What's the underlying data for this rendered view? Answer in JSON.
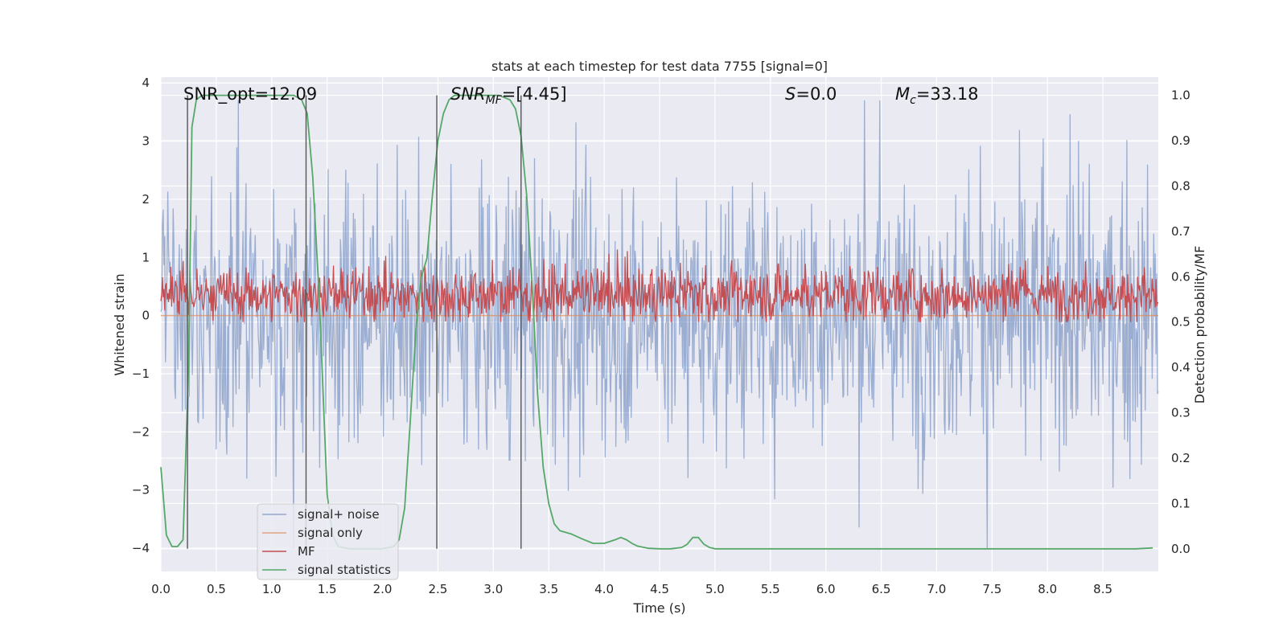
{
  "chart_data": {
    "type": "line",
    "title": "stats at each timestep for test data 7755 [signal=0]",
    "xlabel": "Time (s)",
    "ylabel": "Whitened strain",
    "y2label": "Detection probability/MF",
    "xlim": [
      0.0,
      9.0
    ],
    "ylim": [
      -4.4,
      4.1
    ],
    "y2lim": [
      -0.05,
      1.04
    ],
    "xticks": [
      "0.0",
      "0.5",
      "1.0",
      "1.5",
      "2.0",
      "2.5",
      "3.0",
      "3.5",
      "4.0",
      "4.5",
      "5.0",
      "5.5",
      "6.0",
      "6.5",
      "7.0",
      "7.5",
      "8.0",
      "8.5"
    ],
    "yticks": [
      "4",
      "3",
      "2",
      "1",
      "0",
      "−1",
      "−2",
      "−3",
      "−4"
    ],
    "y2ticks": [
      "1.0",
      "0.9",
      "0.8",
      "0.7",
      "0.6",
      "0.5",
      "0.4",
      "0.3",
      "0.2",
      "0.1",
      "0.0"
    ],
    "grid": true,
    "legend_position": "lower-left",
    "annotations": {
      "snr_opt": "SNR_opt=12.09",
      "snr_mf_main": "SNR",
      "snr_mf_sub": "MF",
      "snr_mf_value": "=[4.45]",
      "s_main": "S",
      "s_value": "=0.0",
      "mc_main": "M",
      "mc_sub": "c",
      "mc_value": "=33.18"
    },
    "vertical_lines_x": [
      0.24,
      1.31,
      2.49,
      3.25
    ],
    "series": [
      {
        "name": "signal+ noise",
        "color": "#4c72b0",
        "axis": "left",
        "style": "dense noise band",
        "typical_range": [
          -2.6,
          2.7
        ],
        "extreme_range": [
          -4.0,
          3.7
        ]
      },
      {
        "name": "signal only",
        "color": "#dd8452",
        "axis": "left",
        "x": [
          0.0,
          9.0
        ],
        "y": [
          0.0,
          0.0
        ]
      },
      {
        "name": "MF",
        "color": "#c44e52",
        "axis": "right",
        "style": "dense noise band",
        "typical_range": [
          0.52,
          0.6
        ],
        "extreme_range": [
          0.5,
          0.66
        ]
      },
      {
        "name": "signal statistics",
        "color": "#55a868",
        "axis": "right",
        "x": [
          0.0,
          0.05,
          0.1,
          0.15,
          0.2,
          0.25,
          0.28,
          0.32,
          0.37,
          0.4,
          0.6,
          0.8,
          1.0,
          1.2,
          1.27,
          1.32,
          1.37,
          1.43,
          1.5,
          1.55,
          1.6,
          1.7,
          1.8,
          1.9,
          2.0,
          2.1,
          2.15,
          2.2,
          2.25,
          2.3,
          2.35,
          2.4,
          2.45,
          2.5,
          2.55,
          2.6,
          2.65,
          2.75,
          2.85,
          2.95,
          3.05,
          3.15,
          3.2,
          3.25,
          3.3,
          3.35,
          3.4,
          3.45,
          3.5,
          3.55,
          3.6,
          3.7,
          3.8,
          3.9,
          4.0,
          4.1,
          4.15,
          4.2,
          4.25,
          4.3,
          4.4,
          4.5,
          4.6,
          4.7,
          4.75,
          4.8,
          4.85,
          4.9,
          4.95,
          5.0,
          5.1,
          5.5,
          6.0,
          7.0,
          8.0,
          8.5,
          8.8,
          8.95
        ],
        "y": [
          0.18,
          0.03,
          0.005,
          0.005,
          0.02,
          0.4,
          0.93,
          0.99,
          1.0,
          1.0,
          1.0,
          1.0,
          1.0,
          1.0,
          0.99,
          0.96,
          0.82,
          0.55,
          0.12,
          0.03,
          0.005,
          0.0,
          0.0,
          0.0,
          0.0,
          0.005,
          0.02,
          0.09,
          0.28,
          0.48,
          0.6,
          0.64,
          0.78,
          0.9,
          0.96,
          0.99,
          1.0,
          1.0,
          1.0,
          1.0,
          1.0,
          0.99,
          0.97,
          0.91,
          0.78,
          0.58,
          0.34,
          0.18,
          0.1,
          0.055,
          0.04,
          0.033,
          0.022,
          0.012,
          0.012,
          0.02,
          0.025,
          0.02,
          0.012,
          0.006,
          0.001,
          0.0,
          0.0,
          0.003,
          0.01,
          0.025,
          0.025,
          0.01,
          0.003,
          0.0,
          0.0,
          0.0,
          0.0,
          0.0,
          0.0,
          0.0,
          0.0,
          0.002
        ]
      }
    ]
  }
}
